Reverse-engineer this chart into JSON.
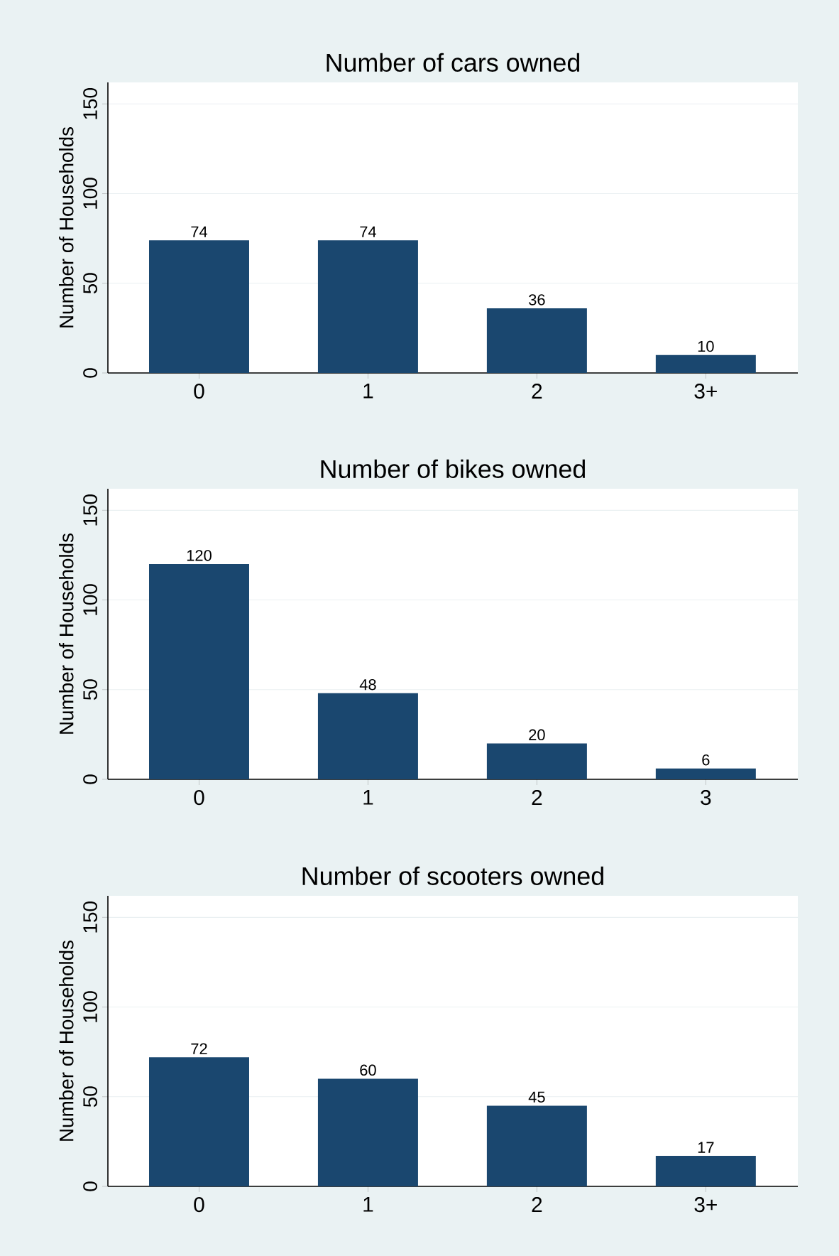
{
  "chart_data": [
    {
      "type": "bar",
      "title": "Number of cars owned",
      "ylabel": "Number of Households",
      "categories": [
        "0",
        "1",
        "2",
        "3+"
      ],
      "values": [
        74,
        74,
        36,
        10
      ],
      "color": "#1a476f",
      "ylim": [
        0,
        162
      ],
      "yticks": [
        0,
        50,
        100,
        150
      ],
      "grid": "y",
      "data_labels": true
    },
    {
      "type": "bar",
      "title": "Number of bikes owned",
      "ylabel": "Number of Households",
      "categories": [
        "0",
        "1",
        "2",
        "3"
      ],
      "values": [
        120,
        48,
        20,
        6
      ],
      "color": "#1a476f",
      "ylim": [
        0,
        162
      ],
      "yticks": [
        0,
        50,
        100,
        150
      ],
      "grid": "y",
      "data_labels": true
    },
    {
      "type": "bar",
      "title": "Number of scooters owned",
      "ylabel": "Number of Households",
      "categories": [
        "0",
        "1",
        "2",
        "3+"
      ],
      "values": [
        72,
        60,
        45,
        17
      ],
      "color": "#1a476f",
      "ylim": [
        0,
        162
      ],
      "yticks": [
        0,
        50,
        100,
        150
      ],
      "grid": "y",
      "data_labels": true
    }
  ]
}
